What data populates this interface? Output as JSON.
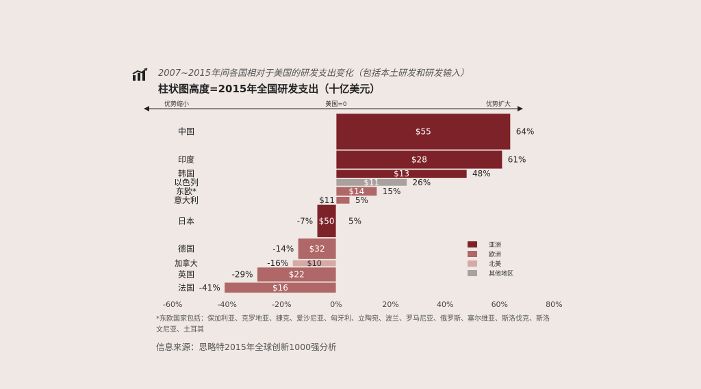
{
  "subtitle": "2007~2015年间各国相对于美国的研发支出变化（包括本土研发和研发输入）",
  "title": "柱状图高度=2015年全国研发支出（十亿美元）",
  "icon": "bar-chart-icon",
  "arrow_labels": {
    "left": "优势缩小",
    "center": "美国=0",
    "right": "优势扩大"
  },
  "footnote": "*东欧国家包括：保加利亚、克罗地亚、捷克、爱沙尼亚、匈牙利、立陶宛、波兰、罗马尼亚、俄罗斯、塞尔维亚、斯洛伐克、斯洛文尼亚、土耳其",
  "source": "信息来源：思略特2015年全球创新1000强分析",
  "chart_data": {
    "type": "bar",
    "orientation": "horizontal",
    "xlim": [
      -60,
      80
    ],
    "x_ticks": [
      "-60%",
      "-40%",
      "-20%",
      "0%",
      "20%",
      "40%",
      "60%",
      "80%"
    ],
    "x_tick_values": [
      -60,
      -40,
      -20,
      0,
      20,
      40,
      60,
      80
    ],
    "bar_thickness_meaning": "2015 national R&D spending ($B)",
    "items": [
      {
        "country": "中国",
        "change": 64,
        "change_label": "64%",
        "spend": 55,
        "spend_label": "$55",
        "region": "asia"
      },
      {
        "country": "印度",
        "change": 61,
        "change_label": "61%",
        "spend": 28,
        "spend_label": "$28",
        "region": "asia"
      },
      {
        "country": "韩国",
        "change": 48,
        "change_label": "48%",
        "spend": 13,
        "spend_label": "$13",
        "region": "asia"
      },
      {
        "country": "以色列",
        "change": 26,
        "change_label": "26%",
        "spend": 11,
        "spend_label": "$11",
        "region": "other"
      },
      {
        "country": "东欧*",
        "change": 15,
        "change_label": "15%",
        "spend": 14,
        "spend_label": "$14",
        "region": "europe"
      },
      {
        "country": "意大利",
        "change": 5,
        "change_label": "5%",
        "spend": 11,
        "spend_label": "$11",
        "region": "europe"
      },
      {
        "country": "日本",
        "change": -7,
        "change_label": "-7%",
        "spend": 50,
        "spend_label": "$50",
        "region": "asia"
      },
      {
        "country": "德国",
        "change": -14,
        "change_label": "-14%",
        "spend": 32,
        "spend_label": "$32",
        "region": "europe"
      },
      {
        "country": "加拿大",
        "change": -16,
        "change_label": "-16%",
        "spend": 10,
        "spend_label": "$10",
        "region": "north_america"
      },
      {
        "country": "英国",
        "change": -29,
        "change_label": "-29%",
        "spend": 22,
        "spend_label": "$22",
        "region": "europe"
      },
      {
        "country": "法国",
        "change": -41,
        "change_label": "-41%",
        "spend": 16,
        "spend_label": "$16",
        "region": "europe"
      }
    ],
    "extra_labels": [
      {
        "text": "5%",
        "note": "label shown near Japan row"
      }
    ],
    "legend": [
      {
        "key": "asia",
        "label": "亚洲",
        "color": "#7d2228"
      },
      {
        "key": "europe",
        "label": "欧洲",
        "color": "#b06767"
      },
      {
        "key": "north_america",
        "label": "北美",
        "color": "#d7a9a6"
      },
      {
        "key": "other",
        "label": "其他地区",
        "color": "#a8a19e"
      }
    ],
    "legend_position": "right"
  }
}
